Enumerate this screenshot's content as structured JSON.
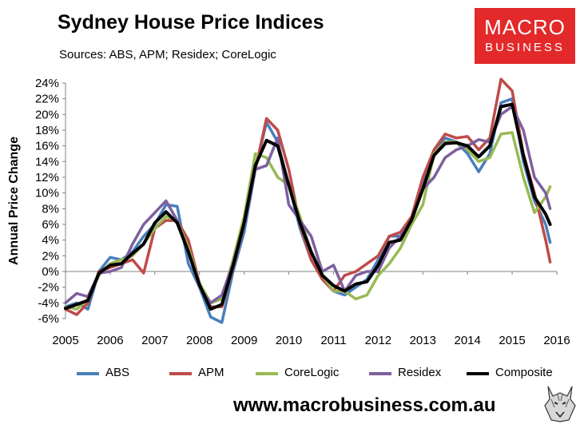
{
  "header": {
    "title": "Sydney House Price Indices",
    "subtitle": "Sources: ABS, APM; Residex; CoreLogic"
  },
  "logo": {
    "line1": "MACRO",
    "line2": "BUSINESS",
    "color": "#e3292a"
  },
  "footer": {
    "url": "www.macrobusiness.com.au",
    "icon": "wolf-logo-icon"
  },
  "chart_data": {
    "type": "line",
    "title": "Sydney House Price Indices",
    "ylabel": "Annual Price Change",
    "xlabel": "",
    "xlim": [
      2005,
      2016
    ],
    "ylim": [
      -6,
      24
    ],
    "x_ticks": [
      "2005",
      "2006",
      "2007",
      "2008",
      "2009",
      "2010",
      "2011",
      "2012",
      "2013",
      "2014",
      "2015",
      "2016"
    ],
    "y_ticks": [
      "-6%",
      "-4%",
      "-2%",
      "0%",
      "2%",
      "4%",
      "6%",
      "8%",
      "10%",
      "12%",
      "14%",
      "16%",
      "18%",
      "20%",
      "22%",
      "24%"
    ],
    "grid": false,
    "legend": "bottom",
    "series": [
      {
        "name": "ABS",
        "color": "#4a7ebb",
        "x": [
          2005.0,
          2005.25,
          2005.5,
          2005.75,
          2006.0,
          2006.25,
          2006.5,
          2006.75,
          2007.0,
          2007.25,
          2007.5,
          2007.75,
          2008.0,
          2008.25,
          2008.5,
          2008.75,
          2009.0,
          2009.25,
          2009.5,
          2009.75,
          2010.0,
          2010.25,
          2010.5,
          2010.75,
          2011.0,
          2011.25,
          2011.5,
          2011.75,
          2012.0,
          2012.25,
          2012.5,
          2012.75,
          2013.0,
          2013.25,
          2013.5,
          2013.75,
          2014.0,
          2014.25,
          2014.5,
          2014.75,
          2015.0,
          2015.25,
          2015.5,
          2015.75,
          2015.85
        ],
        "y": [
          -4.5,
          -4.0,
          -4.8,
          0.0,
          1.8,
          1.5,
          2.5,
          4.5,
          6.0,
          8.5,
          8.3,
          1.0,
          -2.0,
          -5.8,
          -6.5,
          0.0,
          5.0,
          13.0,
          19.0,
          16.5,
          11.0,
          5.5,
          1.5,
          -1.0,
          -2.5,
          -3.0,
          -2.0,
          -1.0,
          1.5,
          4.5,
          4.5,
          7.0,
          11.0,
          15.5,
          17.0,
          16.5,
          15.0,
          12.7,
          15.0,
          21.5,
          22.0,
          14.0,
          9.0,
          6.0,
          3.7
        ]
      },
      {
        "name": "APM",
        "color": "#be4b48",
        "x": [
          2005.0,
          2005.25,
          2005.5,
          2005.75,
          2006.0,
          2006.25,
          2006.5,
          2006.75,
          2007.0,
          2007.25,
          2007.5,
          2007.75,
          2008.0,
          2008.25,
          2008.5,
          2008.75,
          2009.0,
          2009.25,
          2009.5,
          2009.75,
          2010.0,
          2010.25,
          2010.5,
          2010.75,
          2011.0,
          2011.25,
          2011.5,
          2011.75,
          2012.0,
          2012.25,
          2012.5,
          2012.75,
          2013.0,
          2013.25,
          2013.5,
          2013.75,
          2014.0,
          2014.25,
          2014.5,
          2014.75,
          2015.0,
          2015.25,
          2015.5,
          2015.75,
          2015.85
        ],
        "y": [
          -4.8,
          -5.5,
          -4.0,
          0.0,
          0.5,
          1.0,
          1.5,
          -0.2,
          5.5,
          6.5,
          6.5,
          4.0,
          -1.5,
          -4.5,
          -4.5,
          0.5,
          6.0,
          13.0,
          19.5,
          18.0,
          13.0,
          6.0,
          1.5,
          -1.0,
          -2.5,
          -0.5,
          0.0,
          1.0,
          2.0,
          4.5,
          5.0,
          7.0,
          12.0,
          15.5,
          17.5,
          17.0,
          17.2,
          15.5,
          17.0,
          24.5,
          23.0,
          15.0,
          10.0,
          4.0,
          1.2
        ]
      },
      {
        "name": "CoreLogic",
        "color": "#98b954",
        "x": [
          2005.0,
          2005.25,
          2005.5,
          2005.75,
          2006.0,
          2006.25,
          2006.5,
          2006.75,
          2007.0,
          2007.25,
          2007.5,
          2007.75,
          2008.0,
          2008.25,
          2008.5,
          2008.75,
          2009.0,
          2009.25,
          2009.5,
          2009.75,
          2010.0,
          2010.25,
          2010.5,
          2010.75,
          2011.0,
          2011.25,
          2011.5,
          2011.75,
          2012.0,
          2012.25,
          2012.5,
          2012.75,
          2013.0,
          2013.25,
          2013.5,
          2013.75,
          2014.0,
          2014.25,
          2014.5,
          2014.75,
          2015.0,
          2015.25,
          2015.5,
          2015.75,
          2015.85
        ],
        "y": [
          -4.5,
          -4.8,
          -3.5,
          -0.5,
          1.0,
          1.5,
          2.0,
          3.5,
          5.5,
          7.0,
          6.5,
          3.0,
          -1.5,
          -4.0,
          -3.5,
          1.5,
          7.0,
          15.0,
          14.5,
          12.0,
          11.0,
          7.0,
          2.5,
          -0.5,
          -2.5,
          -2.5,
          -3.5,
          -3.0,
          -0.5,
          1.0,
          3.0,
          6.0,
          8.5,
          15.0,
          16.5,
          16.5,
          15.5,
          14.0,
          14.5,
          17.5,
          17.7,
          12.0,
          7.5,
          9.5,
          10.8
        ]
      },
      {
        "name": "Residex",
        "color": "#7d60a0",
        "x": [
          2005.0,
          2005.25,
          2005.5,
          2005.75,
          2006.0,
          2006.25,
          2006.5,
          2006.75,
          2007.0,
          2007.25,
          2007.5,
          2007.75,
          2008.0,
          2008.25,
          2008.5,
          2008.75,
          2009.0,
          2009.25,
          2009.5,
          2009.75,
          2010.0,
          2010.25,
          2010.5,
          2010.75,
          2011.0,
          2011.25,
          2011.5,
          2011.75,
          2012.0,
          2012.25,
          2012.5,
          2012.75,
          2013.0,
          2013.25,
          2013.5,
          2013.75,
          2014.0,
          2014.25,
          2014.5,
          2014.75,
          2015.0,
          2015.25,
          2015.5,
          2015.75,
          2015.85
        ],
        "y": [
          -4.0,
          -2.8,
          -3.2,
          -0.2,
          0.0,
          0.5,
          3.5,
          6.0,
          7.5,
          9.0,
          6.5,
          2.5,
          -2.0,
          -4.0,
          -3.0,
          1.0,
          6.0,
          13.0,
          13.5,
          17.0,
          8.5,
          6.5,
          4.5,
          0.0,
          0.8,
          -2.5,
          -0.5,
          0.0,
          0.0,
          3.0,
          4.5,
          6.5,
          10.5,
          12.0,
          14.5,
          15.5,
          16.0,
          16.8,
          16.5,
          20.0,
          21.0,
          18.0,
          12.0,
          10.0,
          8.0
        ]
      },
      {
        "name": "Composite",
        "color": "#000000",
        "x": [
          2005.0,
          2005.25,
          2005.5,
          2005.75,
          2006.0,
          2006.25,
          2006.5,
          2006.75,
          2007.0,
          2007.25,
          2007.5,
          2007.75,
          2008.0,
          2008.25,
          2008.5,
          2008.75,
          2009.0,
          2009.25,
          2009.5,
          2009.75,
          2010.0,
          2010.25,
          2010.5,
          2010.75,
          2011.0,
          2011.25,
          2011.5,
          2011.75,
          2012.0,
          2012.25,
          2012.5,
          2012.75,
          2013.0,
          2013.25,
          2013.5,
          2013.75,
          2014.0,
          2014.25,
          2014.5,
          2014.75,
          2015.0,
          2015.25,
          2015.5,
          2015.75,
          2015.85
        ],
        "y": [
          -4.7,
          -4.2,
          -3.7,
          -0.2,
          0.8,
          1.0,
          2.3,
          3.5,
          6.2,
          7.6,
          6.2,
          2.5,
          -1.7,
          -4.8,
          -4.2,
          0.7,
          6.2,
          13.5,
          16.7,
          16.0,
          11.0,
          6.2,
          2.5,
          -0.5,
          -1.8,
          -2.5,
          -1.6,
          -1.3,
          0.8,
          3.7,
          4.0,
          6.6,
          10.5,
          14.8,
          16.3,
          16.4,
          16.0,
          14.6,
          16.0,
          21.0,
          21.3,
          14.8,
          9.5,
          7.3,
          6.0
        ]
      }
    ]
  }
}
